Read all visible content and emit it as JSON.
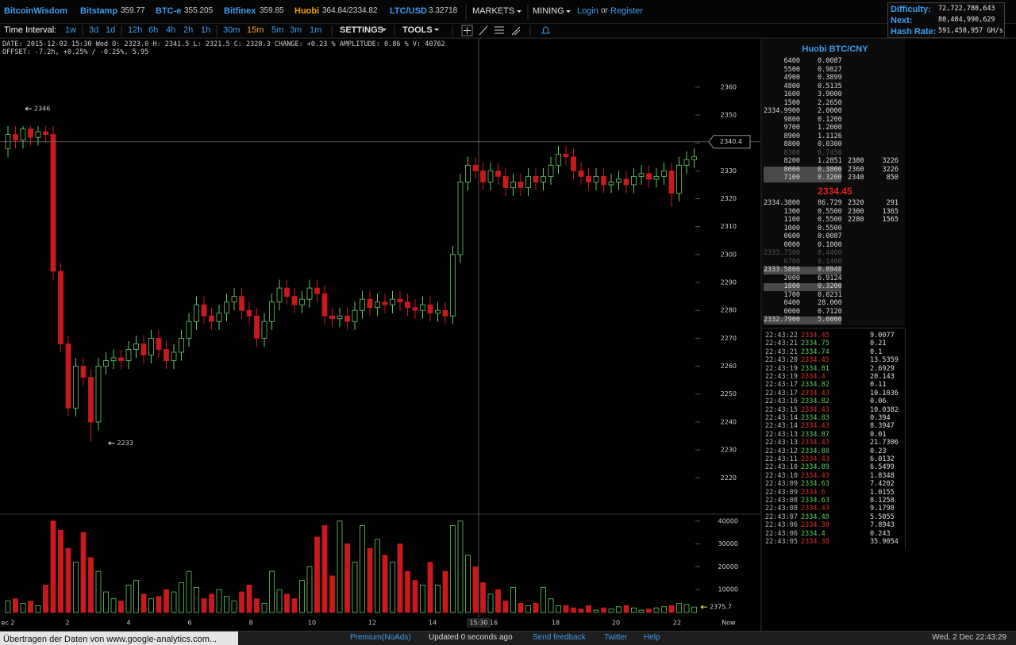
{
  "header": {
    "brand": "BitcoinWisdom",
    "tickers": [
      {
        "name": "Bitstamp",
        "price": "359.77"
      },
      {
        "name": "BTC-e",
        "price": "355.205"
      },
      {
        "name": "Bitfinex",
        "price": "359.85"
      },
      {
        "name": "Huobi",
        "price": "364.84/2334.82",
        "color": "#f2a100"
      },
      {
        "name": "LTC/USD",
        "price": "3.32718"
      }
    ],
    "menus": [
      "MARKETS",
      "MINING"
    ],
    "login": "Login",
    "or": "or",
    "register": "Register"
  },
  "stats": [
    {
      "label": "Difficulty:",
      "value": "72,722,780,643"
    },
    {
      "label": "Next:",
      "value": "80,484,990,629"
    },
    {
      "label": "Hash Rate:",
      "value": "591,458,957 GH/s"
    }
  ],
  "toolbar": {
    "label": "Time Interval:",
    "intervals": [
      "1w",
      "3d",
      "1d",
      "12h",
      "6h",
      "4h",
      "2h",
      "1h",
      "30m",
      "15m",
      "5m",
      "3m",
      "1m"
    ],
    "active": "15m",
    "settings": "SETTINGS",
    "tools": "TOOLS"
  },
  "info": [
    "DATE: 2015-12-02 15:30 Wed   O: 2323.0   H: 2341.5   L: 2321.5   C: 2328.3   CHANGE: +0.23 %   AMPLITUDE: 0.86 %   V: 40762",
    "OFFSET: -7.2h, +0.25% / -0.25%, 5.95"
  ],
  "chart": {
    "type": "candlestick",
    "open": [
      2338,
      2343,
      2341,
      2345,
      2342,
      2344,
      2343,
      2294,
      2268,
      2245,
      2260,
      2256,
      2240,
      2260,
      2262,
      2263,
      2262,
      2266,
      2268,
      2264,
      2270,
      2266,
      2262,
      2265,
      2270,
      2276,
      2282,
      2278,
      2276,
      2279,
      2283,
      2285,
      2280,
      2278,
      2270,
      2276,
      2283,
      2288,
      2285,
      2282,
      2284,
      2288,
      2286,
      2278,
      2277,
      2278,
      2276,
      2280,
      2284,
      2281,
      2283,
      2282,
      2284,
      2283,
      2281,
      2280,
      2282,
      2279,
      2280,
      2278,
      2300,
      2326,
      2332,
      2330,
      2326,
      2330,
      2328,
      2324,
      2326,
      2324,
      2328,
      2326,
      2328,
      2332,
      2336,
      2335,
      2330,
      2328,
      2326,
      2328,
      2325,
      2326,
      2327,
      2325,
      2328,
      2329,
      2327,
      2328,
      2330,
      2322,
      2332,
      2334
    ],
    "high": [
      2346,
      2346,
      2346,
      2346,
      2346,
      2346,
      2346,
      2297,
      2271,
      2263,
      2263,
      2259,
      2263,
      2265,
      2266,
      2266,
      2269,
      2271,
      2271,
      2273,
      2273,
      2269,
      2268,
      2273,
      2279,
      2285,
      2285,
      2281,
      2282,
      2286,
      2288,
      2288,
      2283,
      2281,
      2279,
      2286,
      2291,
      2291,
      2288,
      2287,
      2291,
      2291,
      2289,
      2281,
      2281,
      2281,
      2283,
      2287,
      2287,
      2286,
      2286,
      2287,
      2287,
      2286,
      2284,
      2285,
      2285,
      2283,
      2283,
      2303,
      2329,
      2335,
      2335,
      2333,
      2333,
      2333,
      2331,
      2329,
      2329,
      2331,
      2331,
      2331,
      2335,
      2339,
      2339,
      2338,
      2333,
      2331,
      2331,
      2331,
      2329,
      2330,
      2330,
      2331,
      2332,
      2332,
      2331,
      2333,
      2333,
      2335,
      2337,
      2338
    ],
    "low": [
      2335,
      2338,
      2338,
      2339,
      2339,
      2340,
      2291,
      2265,
      2242,
      2242,
      2253,
      2233,
      2237,
      2257,
      2259,
      2259,
      2259,
      2263,
      2261,
      2261,
      2263,
      2259,
      2259,
      2262,
      2267,
      2273,
      2275,
      2273,
      2273,
      2276,
      2280,
      2277,
      2275,
      2267,
      2267,
      2273,
      2280,
      2282,
      2279,
      2279,
      2281,
      2283,
      2275,
      2274,
      2274,
      2273,
      2273,
      2277,
      2278,
      2278,
      2279,
      2279,
      2280,
      2278,
      2277,
      2277,
      2276,
      2276,
      2275,
      2275,
      2297,
      2323,
      2327,
      2323,
      2323,
      2325,
      2321,
      2321,
      2321,
      2321,
      2323,
      2323,
      2325,
      2329,
      2332,
      2327,
      2325,
      2323,
      2323,
      2322,
      2322,
      2323,
      2322,
      2322,
      2325,
      2324,
      2324,
      2325,
      2317,
      2319,
      2329,
      2331
    ],
    "close": [
      2343,
      2341,
      2345,
      2342,
      2344,
      2343,
      2294,
      2268,
      2245,
      2260,
      2256,
      2240,
      2260,
      2262,
      2263,
      2262,
      2266,
      2268,
      2264,
      2270,
      2266,
      2262,
      2265,
      2270,
      2276,
      2282,
      2278,
      2276,
      2279,
      2283,
      2285,
      2280,
      2278,
      2270,
      2276,
      2283,
      2288,
      2285,
      2282,
      2284,
      2288,
      2286,
      2278,
      2277,
      2278,
      2276,
      2280,
      2284,
      2281,
      2283,
      2282,
      2284,
      2283,
      2281,
      2280,
      2282,
      2279,
      2280,
      2278,
      2300,
      2326,
      2332,
      2330,
      2326,
      2330,
      2328,
      2324,
      2326,
      2324,
      2328,
      2326,
      2328,
      2332,
      2336,
      2335,
      2330,
      2328,
      2326,
      2328,
      2325,
      2326,
      2327,
      2325,
      2328,
      2329,
      2327,
      2328,
      2330,
      2322,
      2332,
      2334,
      2335
    ],
    "volume": [
      5000,
      6000,
      4000,
      5000,
      3000,
      12000,
      40000,
      36000,
      28000,
      22000,
      35000,
      24000,
      18000,
      9000,
      6000,
      5000,
      12000,
      14000,
      8000,
      6000,
      7000,
      10000,
      9000,
      13000,
      18000,
      11000,
      6000,
      8000,
      10000,
      7000,
      5000,
      9000,
      12000,
      6000,
      4000,
      18000,
      10000,
      8000,
      6000,
      14000,
      20000,
      33000,
      38000,
      16000,
      40000,
      30000,
      22000,
      38000,
      28000,
      32000,
      25000,
      22000,
      30000,
      18000,
      14000,
      12000,
      22000,
      12000,
      18000,
      38000,
      40000,
      25000,
      20000,
      13000,
      8000,
      10000,
      5000,
      11000,
      4000,
      3000,
      4000,
      11000,
      6000,
      3000,
      3000,
      2000,
      1500,
      3000,
      1000,
      2000,
      1500,
      2500,
      3000,
      2000,
      1000,
      1500,
      2000,
      2500,
      3000,
      4000,
      3500,
      2375.7
    ],
    "ylim": [
      2207,
      2377
    ],
    "yticks": [
      2220,
      2230,
      2240,
      2250,
      2260,
      2270,
      2280,
      2290,
      2300,
      2310,
      2320,
      2330,
      2340,
      2350,
      2360
    ],
    "volume_ylim": [
      0,
      42000
    ],
    "volume_yticks": [
      10000,
      20000,
      30000,
      40000
    ],
    "x_labels": [
      "ec 2",
      "2",
      "4",
      "6",
      "8",
      "10",
      "12",
      "14",
      "16",
      "18",
      "20",
      "22",
      "Now"
    ],
    "crosshair_time": "15:30",
    "crosshair_price": 2340.4,
    "colors": {
      "up": "#63c963",
      "down": "#c8191c"
    }
  },
  "orderbook": {
    "title": "Huobi BTC/CNY",
    "asks": [
      {
        "price": "6400",
        "amount": "0.0087"
      },
      {
        "price": "5500",
        "amount": "0.9827"
      },
      {
        "price": "4900",
        "amount": "0.3899"
      },
      {
        "price": "4800",
        "amount": "0.5135"
      },
      {
        "price": "1600",
        "amount": "3.9000"
      },
      {
        "price": "1500",
        "amount": "2.2650"
      },
      {
        "price": "2334.9900",
        "amount": "2.0000"
      },
      {
        "price": "9800",
        "amount": "0.1200"
      },
      {
        "price": "9700",
        "amount": "1.2000"
      },
      {
        "price": "8900",
        "amount": "1.1126"
      },
      {
        "price": "8800",
        "amount": "0.0300"
      },
      {
        "price": "8300",
        "amount": "0.7456",
        "faded": true
      },
      {
        "price": "8200",
        "amount": "1.2851"
      },
      {
        "price": "8000",
        "amount": "0.3800",
        "highlight": true
      },
      {
        "price": "7100",
        "amount": "0.3200",
        "highlight": true
      }
    ],
    "ask_totals": [
      {
        "price": "2380",
        "amount": "3226"
      },
      {
        "price": "2360",
        "amount": "3226"
      },
      {
        "price": "2340",
        "amount": "850"
      }
    ],
    "last": "2334.45",
    "bids": [
      {
        "price": "2334.3800",
        "amount": "86.729"
      },
      {
        "price": "1300",
        "amount": "0.5500"
      },
      {
        "price": "1100",
        "amount": "0.5500"
      },
      {
        "price": "1000",
        "amount": "0.5500"
      },
      {
        "price": "0600",
        "amount": "0.0087"
      },
      {
        "price": "0000",
        "amount": "0.1000"
      },
      {
        "price": "2333.7500",
        "amount": "0.4400",
        "faded": true
      },
      {
        "price": "6700",
        "amount": "0.1400",
        "faded": true
      },
      {
        "price": "2333.5800",
        "amount": "0.8948",
        "highlight": true
      },
      {
        "price": "2000",
        "amount": "6.9124"
      },
      {
        "price": "1800",
        "amount": "0.3200",
        "highlight": true
      },
      {
        "price": "1700",
        "amount": "0.0231"
      },
      {
        "price": "0400",
        "amount": "28.000"
      },
      {
        "price": "0000",
        "amount": "0.7120"
      },
      {
        "price": "2332.7900",
        "amount": "5.0000",
        "highlight": true
      }
    ],
    "bid_totals": [
      {
        "price": "2320",
        "amount": "291"
      },
      {
        "price": "2300",
        "amount": "1365"
      },
      {
        "price": "2280",
        "amount": "1565"
      }
    ]
  },
  "trades": [
    {
      "time": "22:43:22",
      "price": "2334.45",
      "amount": "9.0077",
      "side": "sell"
    },
    {
      "time": "22:43:21",
      "price": "2334.75",
      "amount": "0.21",
      "side": "buy"
    },
    {
      "time": "22:43:21",
      "price": "2334.74",
      "amount": "0.1",
      "side": "buy"
    },
    {
      "time": "22:43:20",
      "price": "2334.45",
      "amount": "13.5359",
      "side": "sell"
    },
    {
      "time": "22:43:19",
      "price": "2334.81",
      "amount": "2.6929",
      "side": "buy"
    },
    {
      "time": "22:43:19",
      "price": "2334.4",
      "amount": "20.143",
      "side": "sell"
    },
    {
      "time": "22:43:17",
      "price": "2334.82",
      "amount": "0.11",
      "side": "buy"
    },
    {
      "time": "22:43:17",
      "price": "2334.43",
      "amount": "10.1036",
      "side": "sell"
    },
    {
      "time": "22:43:16",
      "price": "2334.82",
      "amount": "0.06",
      "side": "buy"
    },
    {
      "time": "22:43:15",
      "price": "2334.43",
      "amount": "10.0382",
      "side": "sell"
    },
    {
      "time": "22:43:14",
      "price": "2334.83",
      "amount": "0.394",
      "side": "buy"
    },
    {
      "time": "22:43:14",
      "price": "2334.43",
      "amount": "8.3947",
      "side": "sell"
    },
    {
      "time": "22:43:13",
      "price": "2334.87",
      "amount": "0.01",
      "side": "buy"
    },
    {
      "time": "22:43:13",
      "price": "2334.43",
      "amount": "21.7306",
      "side": "sell"
    },
    {
      "time": "22:43:12",
      "price": "2334.88",
      "amount": "0.23",
      "side": "buy"
    },
    {
      "time": "22:43:11",
      "price": "2334.43",
      "amount": "6.0132",
      "side": "sell"
    },
    {
      "time": "22:43:10",
      "price": "2334.89",
      "amount": "6.5499",
      "side": "buy"
    },
    {
      "time": "22:43:10",
      "price": "2334.43",
      "amount": "1.8348",
      "side": "sell"
    },
    {
      "time": "22:43:09",
      "price": "2334.63",
      "amount": "7.4202",
      "side": "buy"
    },
    {
      "time": "22:43:09",
      "price": "2334.6",
      "amount": "1.0155",
      "side": "sell"
    },
    {
      "time": "22:43:08",
      "price": "2334.63",
      "amount": "8.1258",
      "side": "buy"
    },
    {
      "time": "22:43:08",
      "price": "2334.43",
      "amount": "9.1798",
      "side": "sell"
    },
    {
      "time": "22:43:07",
      "price": "2334.48",
      "amount": "5.5055",
      "side": "buy"
    },
    {
      "time": "22:43:06",
      "price": "2334.38",
      "amount": "7.8943",
      "side": "sell"
    },
    {
      "time": "22:43:06",
      "price": "2334.4",
      "amount": "0.243",
      "side": "buy"
    },
    {
      "time": "22:43:05",
      "price": "2334.38",
      "amount": "35.9054",
      "side": "sell"
    }
  ],
  "footer": {
    "status": "Übertragen der Daten von www.google-analytics.com...",
    "links": [
      "Premium(NoAds)",
      "Updated 0 seconds ago",
      "Send feedback",
      "Twitter",
      "Help"
    ],
    "clock": "Wed, 2 Dec 22:43:29"
  }
}
